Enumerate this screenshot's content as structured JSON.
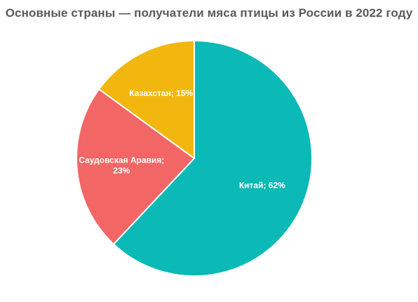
{
  "chart_data": {
    "type": "pie",
    "title": "Основные страны — получатели мяса птицы из России в 2022 году",
    "slices": [
      {
        "label_lines": [
          "Китай; 62%"
        ],
        "name": "Китай",
        "value": 62,
        "color": "#0bb9b6"
      },
      {
        "label_lines": [
          "Саудовская Аравия;",
          "23%"
        ],
        "name": "Саудовская Аравия",
        "value": 23,
        "color": "#f26666"
      },
      {
        "label_lines": [
          "Казахстан; 15%"
        ],
        "name": "Казахстан",
        "value": 15,
        "color": "#f2b70f"
      }
    ],
    "start": "12 o'clock",
    "direction": "clockwise",
    "legend": "none"
  }
}
